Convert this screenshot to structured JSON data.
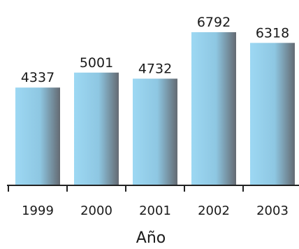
{
  "chart_data": {
    "type": "bar",
    "categories": [
      "1999",
      "2000",
      "2001",
      "2002",
      "2003"
    ],
    "values": [
      4337,
      5001,
      4732,
      6792,
      6318
    ],
    "data_labels": [
      "4337",
      "5001",
      "4732",
      "6792",
      "6318"
    ],
    "title": "",
    "xlabel": "Año",
    "ylabel": "",
    "ylim": [
      0,
      7600
    ],
    "grid": false,
    "legend": "none",
    "colors": {
      "bar_light": "#9dd8f3",
      "bar_mid": "#8ec7e2",
      "bar_dark": "#646a72",
      "axis": "#222222",
      "text": "#1a1a1a"
    }
  }
}
